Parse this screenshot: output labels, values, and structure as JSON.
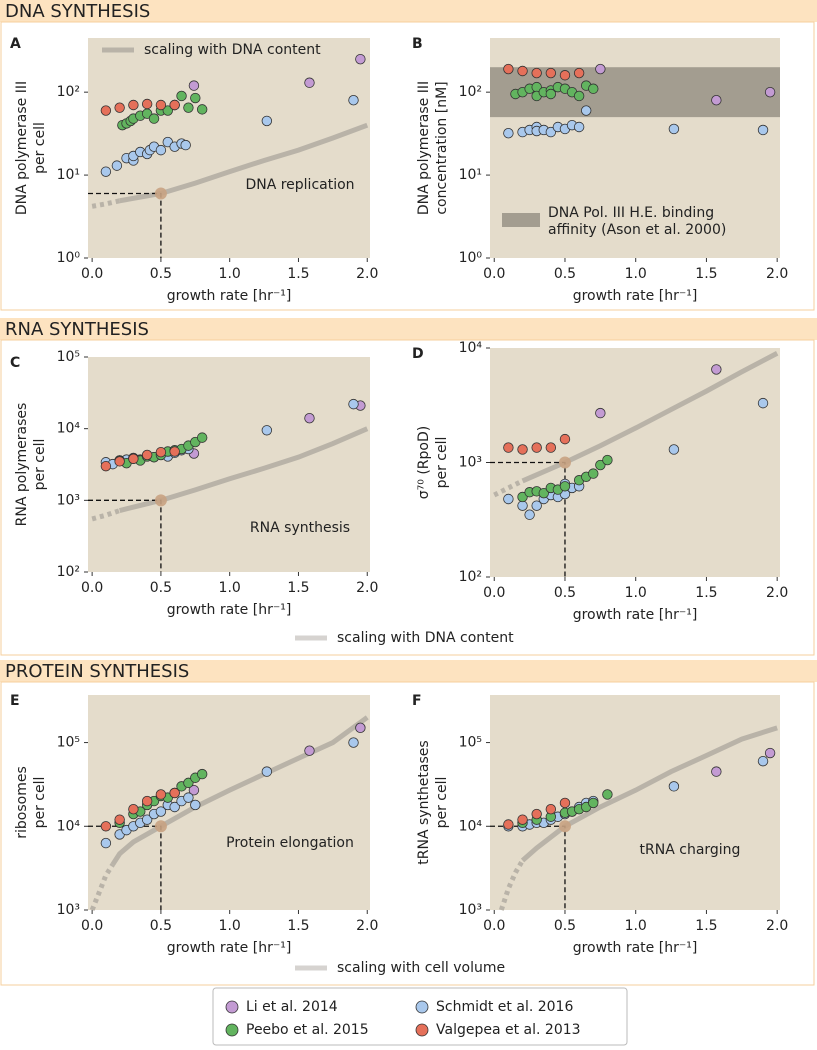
{
  "sections": [
    {
      "title": "DNA SYNTHESIS",
      "curve_label": "scaling with DNA content"
    },
    {
      "title": "RNA SYNTHESIS",
      "curve_label": "scaling with DNA content"
    },
    {
      "title": "PROTEIN SYNTHESIS",
      "curve_label": "scaling with cell volume"
    }
  ],
  "legend": [
    {
      "name": "Li et al. 2014",
      "color": "#c39bd3"
    },
    {
      "name": "Schmidt et al. 2016",
      "color": "#a9c8ec"
    },
    {
      "name": "Peebo et al. 2015",
      "color": "#62b45f"
    },
    {
      "name": "Valgepea et al. 2013",
      "color": "#e5705a"
    }
  ],
  "chart_data": [
    {
      "type": "scatter",
      "label": "A",
      "ylabel": [
        "DNA polymerase III",
        "per cell"
      ],
      "xlabel": "growth rate [hr⁻¹]",
      "xlim": [
        -0.03,
        2.02
      ],
      "xticks": [
        {
          "value": 0,
          "label": "0.0"
        },
        {
          "value": 0.5,
          "label": "0.5"
        },
        {
          "value": 1,
          "label": "1.0"
        },
        {
          "value": 1.5,
          "label": "1.5"
        },
        {
          "value": 2,
          "label": "2.0"
        }
      ],
      "yscale": "log",
      "ylim": [
        1,
        450
      ],
      "yticks": [
        {
          "value": 1,
          "label": "10⁰"
        },
        {
          "value": 10,
          "label": "10¹"
        },
        {
          "value": 100,
          "label": "10²"
        }
      ],
      "series": [
        {
          "x": [
            0.74,
            1.58,
            1.95
          ],
          "values": [
            120,
            130,
            250
          ]
        },
        {
          "x": [
            0.1,
            0.18,
            0.25,
            0.3,
            0.3,
            0.35,
            0.4,
            0.42,
            0.45,
            0.5,
            0.55,
            0.6,
            0.65,
            0.68,
            1.27,
            1.9
          ],
          "values": [
            11,
            13,
            16,
            15,
            17,
            19,
            18,
            20,
            22,
            20,
            25,
            22,
            24,
            23,
            45,
            80
          ]
        },
        {
          "x": [
            0.22,
            0.25,
            0.28,
            0.3,
            0.35,
            0.4,
            0.45,
            0.5,
            0.55,
            0.6,
            0.65,
            0.7,
            0.75,
            0.8
          ],
          "values": [
            40,
            42,
            45,
            48,
            52,
            55,
            48,
            60,
            60,
            70,
            90,
            65,
            85,
            62
          ]
        },
        {
          "x": [
            0.1,
            0.2,
            0.3,
            0.4,
            0.5,
            0.6
          ],
          "values": [
            60,
            65,
            70,
            72,
            70,
            70
          ]
        }
      ],
      "curve": {
        "x": [
          0.2,
          0.5,
          0.75,
          1,
          1.25,
          1.5,
          1.75,
          2
        ],
        "values": [
          4.9,
          6,
          8,
          11,
          15,
          20,
          28,
          40
        ]
      },
      "curve_extrapolated": {
        "x": [
          0,
          0.1,
          0.2
        ],
        "values": [
          4.2,
          4.5,
          4.9
        ]
      },
      "reference": {
        "x": 0.5,
        "value": 6
      },
      "annotation": "DNA replication"
    },
    {
      "type": "scatter",
      "label": "B",
      "ylabel": [
        "DNA polymerase III",
        "concentration [nM]"
      ],
      "xlabel": "growth rate [hr⁻¹]",
      "xlim": [
        -0.03,
        2.02
      ],
      "xticks": [
        {
          "value": 0,
          "label": "0.0"
        },
        {
          "value": 0.5,
          "label": "0.5"
        },
        {
          "value": 1,
          "label": "1.0"
        },
        {
          "value": 1.5,
          "label": "1.5"
        },
        {
          "value": 2,
          "label": "2.0"
        }
      ],
      "yscale": "log",
      "ylim": [
        1,
        450
      ],
      "yticks": [
        {
          "value": 1,
          "label": "10⁰"
        },
        {
          "value": 10,
          "label": "10¹"
        },
        {
          "value": 100,
          "label": "10²"
        }
      ],
      "band": {
        "range": [
          50,
          200
        ],
        "label": [
          "DNA Pol. III H.E. binding",
          "affinity (Ason et al. 2000)"
        ]
      },
      "series": [
        {
          "x": [
            0.75,
            1.57,
            1.95
          ],
          "values": [
            190,
            80,
            100
          ]
        },
        {
          "x": [
            0.1,
            0.2,
            0.25,
            0.3,
            0.3,
            0.35,
            0.4,
            0.45,
            0.5,
            0.55,
            0.6,
            0.65,
            1.27,
            1.9
          ],
          "values": [
            32,
            33,
            35,
            38,
            34,
            35,
            33,
            38,
            36,
            40,
            38,
            60,
            36,
            35
          ]
        },
        {
          "x": [
            0.15,
            0.2,
            0.25,
            0.3,
            0.3,
            0.35,
            0.4,
            0.4,
            0.45,
            0.5,
            0.55,
            0.6,
            0.65,
            0.7
          ],
          "values": [
            95,
            100,
            110,
            115,
            90,
            100,
            105,
            95,
            115,
            110,
            100,
            90,
            120,
            110
          ]
        },
        {
          "x": [
            0.1,
            0.2,
            0.3,
            0.4,
            0.5,
            0.6
          ],
          "values": [
            190,
            180,
            170,
            170,
            160,
            170
          ]
        }
      ]
    },
    {
      "type": "scatter",
      "label": "C",
      "ylabel": [
        "RNA polymerases",
        "per cell"
      ],
      "xlabel": "growth rate [hr⁻¹]",
      "xlim": [
        -0.03,
        2.02
      ],
      "xticks": [
        {
          "value": 0,
          "label": "0.0"
        },
        {
          "value": 0.5,
          "label": "0.5"
        },
        {
          "value": 1,
          "label": "1.0"
        },
        {
          "value": 1.5,
          "label": "1.5"
        },
        {
          "value": 2,
          "label": "2.0"
        }
      ],
      "yscale": "log",
      "ylim": [
        100,
        100000
      ],
      "yticks": [
        {
          "value": 100,
          "label": "10²"
        },
        {
          "value": 1000,
          "label": "10³"
        },
        {
          "value": 10000,
          "label": "10⁴"
        },
        {
          "value": 100000,
          "label": "10⁵"
        }
      ],
      "series": [
        {
          "x": [
            0.74,
            1.58,
            1.95
          ],
          "values": [
            4500,
            14000,
            21000
          ]
        },
        {
          "x": [
            0.1,
            0.15,
            0.2,
            0.25,
            0.3,
            0.35,
            0.4,
            0.45,
            0.5,
            0.55,
            0.6,
            0.65,
            0.7,
            1.27,
            1.9
          ],
          "values": [
            3400,
            3200,
            3600,
            3700,
            3900,
            3700,
            4200,
            4000,
            4300,
            4100,
            4600,
            5000,
            5200,
            9500,
            22000
          ]
        },
        {
          "x": [
            0.2,
            0.25,
            0.3,
            0.35,
            0.4,
            0.45,
            0.5,
            0.55,
            0.6,
            0.65,
            0.7,
            0.75,
            0.8
          ],
          "values": [
            3600,
            3300,
            3800,
            3600,
            4100,
            4000,
            4300,
            4800,
            5000,
            5200,
            5800,
            6500,
            7500
          ]
        },
        {
          "x": [
            0.1,
            0.2,
            0.3,
            0.4,
            0.5,
            0.6
          ],
          "values": [
            3000,
            3500,
            3800,
            4300,
            4700,
            4800
          ]
        }
      ],
      "curve": {
        "x": [
          0.2,
          0.5,
          0.75,
          1,
          1.25,
          1.5,
          1.75,
          2
        ],
        "values": [
          720,
          1000,
          1400,
          2000,
          2800,
          4000,
          6200,
          10000
        ]
      },
      "curve_extrapolated": {
        "x": [
          0,
          0.1,
          0.2
        ],
        "values": [
          550,
          620,
          720
        ]
      },
      "reference": {
        "x": 0.5,
        "value": 1000
      },
      "annotation": "RNA synthesis"
    },
    {
      "type": "scatter",
      "label": "D",
      "ylabel": [
        "σ⁷⁰ (RpoD)",
        "per cell"
      ],
      "xlabel": "growth rate [hr⁻¹]",
      "xlim": [
        -0.03,
        2.02
      ],
      "xticks": [
        {
          "value": 0,
          "label": "0.0"
        },
        {
          "value": 0.5,
          "label": "0.5"
        },
        {
          "value": 1,
          "label": "1.0"
        },
        {
          "value": 1.5,
          "label": "1.5"
        },
        {
          "value": 2,
          "label": "2.0"
        }
      ],
      "yscale": "log",
      "ylim": [
        100,
        10000
      ],
      "yticks": [
        {
          "value": 100,
          "label": "10²"
        },
        {
          "value": 1000,
          "label": "10³"
        },
        {
          "value": 10000,
          "label": "10⁴"
        }
      ],
      "series": [
        {
          "x": [
            0.75,
            1.57
          ],
          "values": [
            2700,
            6500
          ]
        },
        {
          "x": [
            0.1,
            0.2,
            0.25,
            0.3,
            0.35,
            0.4,
            0.45,
            0.5,
            0.5,
            0.55,
            0.6,
            1.27,
            1.9
          ],
          "values": [
            480,
            420,
            350,
            420,
            480,
            520,
            500,
            650,
            530,
            600,
            620,
            1300,
            3300
          ]
        },
        {
          "x": [
            0.2,
            0.25,
            0.3,
            0.35,
            0.4,
            0.45,
            0.5,
            0.6,
            0.65,
            0.7,
            0.75,
            0.8
          ],
          "values": [
            500,
            550,
            560,
            540,
            600,
            580,
            620,
            700,
            750,
            800,
            950,
            1050
          ]
        },
        {
          "x": [
            0.1,
            0.2,
            0.3,
            0.4,
            0.5
          ],
          "values": [
            1350,
            1300,
            1350,
            1350,
            1600
          ]
        }
      ],
      "curve": {
        "x": [
          0.2,
          0.5,
          0.75,
          1,
          1.25,
          1.5,
          1.75,
          2
        ],
        "values": [
          690,
          1000,
          1400,
          2000,
          2900,
          4200,
          6200,
          9000
        ]
      },
      "curve_extrapolated": {
        "x": [
          0,
          0.1,
          0.2
        ],
        "values": [
          520,
          600,
          690
        ]
      },
      "reference": {
        "x": 0.5,
        "value": 1000
      }
    },
    {
      "type": "scatter",
      "label": "E",
      "ylabel": [
        "ribosomes",
        "per cell"
      ],
      "xlabel": "growth rate [hr⁻¹]",
      "xlim": [
        -0.03,
        2.02
      ],
      "xticks": [
        {
          "value": 0,
          "label": "0.0"
        },
        {
          "value": 0.5,
          "label": "0.5"
        },
        {
          "value": 1,
          "label": "1.0"
        },
        {
          "value": 1.5,
          "label": "1.5"
        },
        {
          "value": 2,
          "label": "2.0"
        }
      ],
      "yscale": "log",
      "ylim": [
        1000,
        370000
      ],
      "yticks": [
        {
          "value": 1000,
          "label": "10³"
        },
        {
          "value": 10000,
          "label": "10⁴"
        },
        {
          "value": 100000,
          "label": "10⁵"
        }
      ],
      "series": [
        {
          "x": [
            0.74,
            1.58,
            1.95
          ],
          "values": [
            27000,
            80000,
            150000
          ]
        },
        {
          "x": [
            0.1,
            0.2,
            0.25,
            0.3,
            0.35,
            0.4,
            0.45,
            0.5,
            0.55,
            0.6,
            0.65,
            0.7,
            0.75,
            1.27,
            1.9
          ],
          "values": [
            6300,
            8000,
            9000,
            10000,
            11000,
            12000,
            14000,
            15000,
            18000,
            17000,
            20000,
            22000,
            18000,
            45000,
            100000
          ]
        },
        {
          "x": [
            0.2,
            0.3,
            0.35,
            0.4,
            0.45,
            0.5,
            0.55,
            0.6,
            0.65,
            0.7,
            0.75,
            0.8
          ],
          "values": [
            11000,
            14000,
            15000,
            18000,
            20000,
            23000,
            22000,
            25000,
            30000,
            33000,
            38000,
            42000
          ]
        },
        {
          "x": [
            0.1,
            0.2,
            0.3,
            0.4,
            0.5,
            0.6
          ],
          "values": [
            10000,
            12000,
            16000,
            20000,
            24000,
            25000
          ]
        }
      ],
      "curve": {
        "x": [
          0.15,
          0.2,
          0.3,
          0.5,
          0.75,
          1,
          1.25,
          1.5,
          1.75,
          2
        ],
        "values": [
          3500,
          4700,
          6500,
          10000,
          17000,
          27000,
          42000,
          65000,
          100000,
          200000
        ]
      },
      "curve_extrapolated": {
        "x": [
          0,
          0.05,
          0.1,
          0.15
        ],
        "values": [
          1000,
          1600,
          2600,
          3500
        ]
      },
      "reference": {
        "x": 0.5,
        "value": 10000
      },
      "annotation": "Protein elongation"
    },
    {
      "type": "scatter",
      "label": "F",
      "ylabel": [
        "tRNA synthetases",
        "per cell"
      ],
      "xlabel": "growth rate [hr⁻¹]",
      "xlim": [
        -0.03,
        2.02
      ],
      "xticks": [
        {
          "value": 0,
          "label": "0.0"
        },
        {
          "value": 0.5,
          "label": "0.5"
        },
        {
          "value": 1,
          "label": "1.0"
        },
        {
          "value": 1.5,
          "label": "1.5"
        },
        {
          "value": 2,
          "label": "2.0"
        }
      ],
      "yscale": "log",
      "ylim": [
        1000,
        370000
      ],
      "yticks": [
        {
          "value": 1000,
          "label": "10³"
        },
        {
          "value": 10000,
          "label": "10⁴"
        },
        {
          "value": 100000,
          "label": "10⁵"
        }
      ],
      "series": [
        {
          "x": [
            1.57,
            1.95
          ],
          "values": [
            45000,
            75000
          ]
        },
        {
          "x": [
            0.1,
            0.2,
            0.25,
            0.3,
            0.35,
            0.4,
            0.45,
            0.5,
            0.55,
            0.6,
            0.65,
            0.7,
            1.27,
            1.9
          ],
          "values": [
            10000,
            10000,
            10500,
            11000,
            11000,
            12000,
            13000,
            14000,
            15000,
            17000,
            19000,
            20000,
            30000,
            60000
          ]
        },
        {
          "x": [
            0.2,
            0.3,
            0.4,
            0.5,
            0.55,
            0.6,
            0.65,
            0.7,
            0.8
          ],
          "values": [
            11000,
            12000,
            13000,
            14500,
            15000,
            16000,
            17000,
            19000,
            24000
          ]
        },
        {
          "x": [
            0.1,
            0.2,
            0.3,
            0.4,
            0.5
          ],
          "values": [
            10500,
            12000,
            14000,
            16000,
            19000
          ]
        }
      ],
      "curve": {
        "x": [
          0.2,
          0.3,
          0.5,
          0.75,
          1,
          1.25,
          1.5,
          1.75,
          2
        ],
        "values": [
          3900,
          5500,
          10000,
          17000,
          27000,
          45000,
          70000,
          110000,
          150000
        ]
      },
      "curve_extrapolated": {
        "x": [
          0.05,
          0.1,
          0.15,
          0.2
        ],
        "values": [
          1000,
          1800,
          2800,
          3900
        ]
      },
      "reference": {
        "x": 0.5,
        "value": 10000
      },
      "annotation": "tRNA charging"
    }
  ]
}
